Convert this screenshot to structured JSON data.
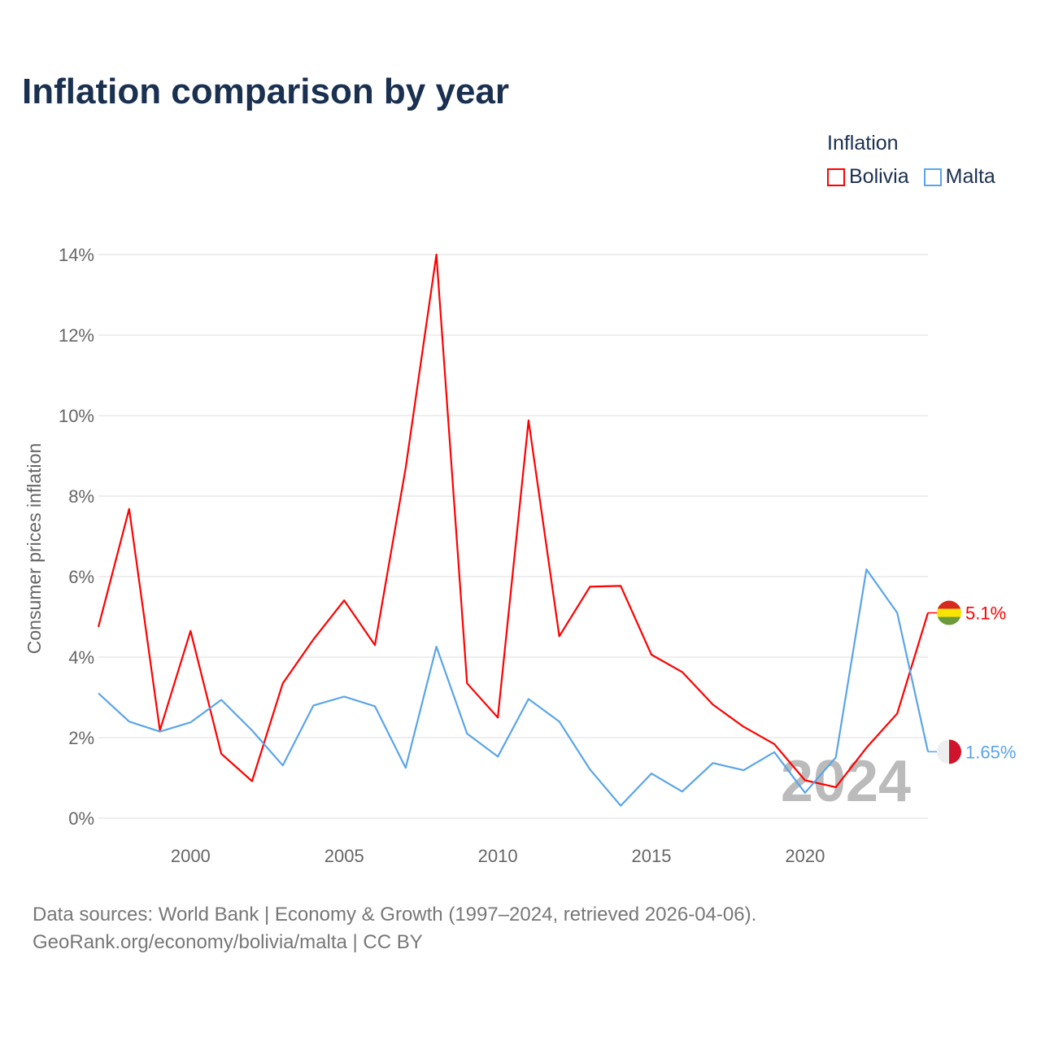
{
  "chart_data": {
    "type": "line",
    "title": "Inflation comparison by year",
    "ylabel": "Consumer prices inflation",
    "xlabel": "",
    "ylim": [
      0,
      14
    ],
    "xlim": [
      1997,
      2024
    ],
    "yticks": [
      "0%",
      "2%",
      "4%",
      "6%",
      "8%",
      "10%",
      "12%",
      "14%"
    ],
    "xticks": [
      "2000",
      "2005",
      "2010",
      "2015",
      "2020"
    ],
    "grid": true,
    "legend_title": "Inflation",
    "legend_position": "top-right",
    "watermark_year": "2024",
    "x": [
      1997,
      1998,
      1999,
      2000,
      2001,
      2002,
      2003,
      2004,
      2005,
      2006,
      2007,
      2008,
      2009,
      2010,
      2011,
      2012,
      2013,
      2014,
      2015,
      2016,
      2017,
      2018,
      2019,
      2020,
      2021,
      2022,
      2023,
      2024
    ],
    "series": [
      {
        "name": "Bolivia",
        "color": "#ff0000",
        "end_label": "5.1%",
        "values": [
          4.75,
          7.68,
          2.18,
          4.65,
          1.6,
          0.92,
          3.35,
          4.44,
          5.41,
          4.3,
          8.7,
          14.0,
          3.35,
          2.5,
          9.88,
          4.52,
          5.75,
          5.77,
          4.06,
          3.63,
          2.82,
          2.27,
          1.84,
          0.94,
          0.77,
          1.75,
          2.6,
          5.1
        ]
      },
      {
        "name": "Malta",
        "color": "#5aa5e8",
        "end_label": "1.65%",
        "values": [
          3.1,
          2.4,
          2.15,
          2.38,
          2.94,
          2.18,
          1.31,
          2.8,
          3.02,
          2.78,
          1.25,
          4.26,
          2.1,
          1.53,
          2.96,
          2.4,
          1.21,
          0.31,
          1.11,
          0.66,
          1.37,
          1.19,
          1.64,
          0.63,
          1.51,
          6.18,
          5.1,
          1.65
        ]
      }
    ]
  },
  "source": {
    "line1": "Data sources: World Bank | Economy & Growth (1997–2024, retrieved 2026-04-06).",
    "line2": "GeoRank.org/economy/bolivia/malta | CC BY"
  }
}
